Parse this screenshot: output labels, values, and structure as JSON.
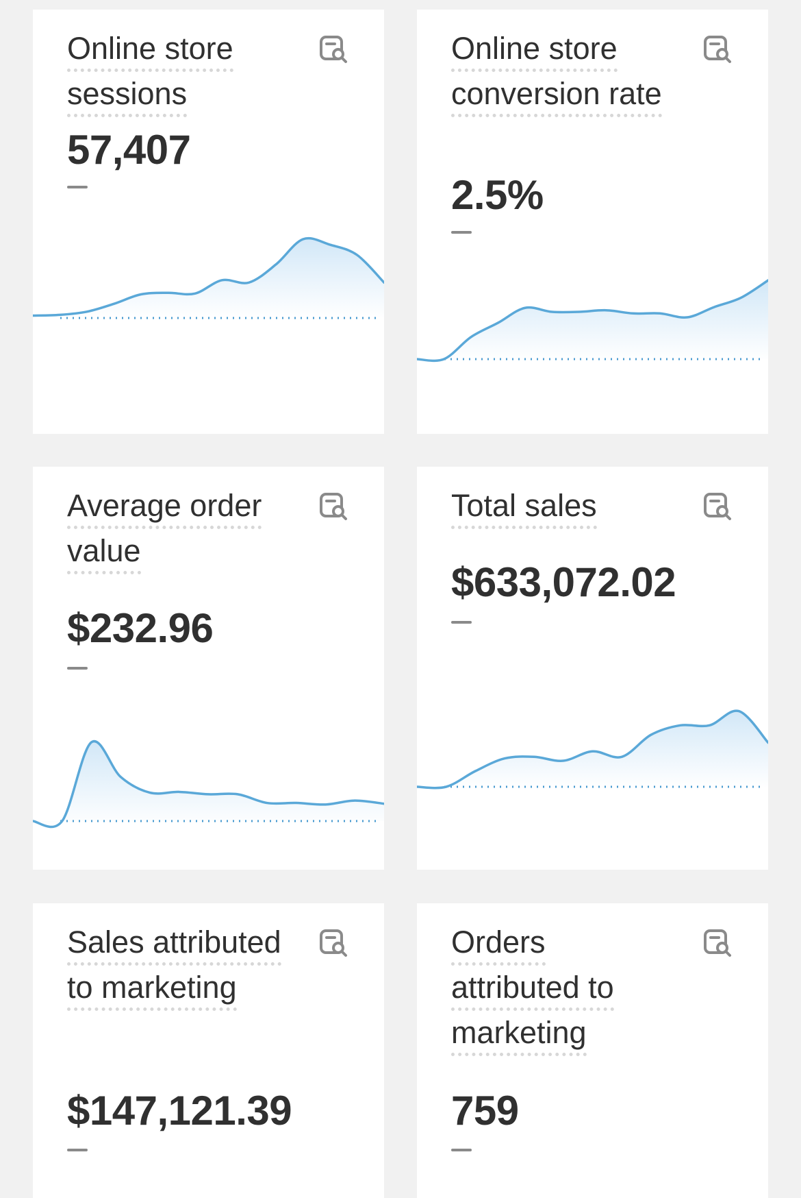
{
  "metrics": [
    {
      "title": "Online store sessions",
      "value": "57,407",
      "change": "—",
      "icon": "report-search-icon",
      "sparkline": [
        0.03,
        0.04,
        0.08,
        0.18,
        0.3,
        0.32,
        0.31,
        0.48,
        0.45,
        0.68,
        1.0,
        0.93,
        0.8,
        0.45
      ]
    },
    {
      "title": "Online store conversion rate",
      "value": "2.5%",
      "change": "—",
      "icon": "report-search-icon",
      "sparkline": [
        0.0,
        0.0,
        0.28,
        0.46,
        0.65,
        0.6,
        0.6,
        0.62,
        0.58,
        0.58,
        0.53,
        0.66,
        0.78,
        1.0
      ]
    },
    {
      "title": "Average order value",
      "value": "$232.96",
      "change": "—",
      "icon": "report-search-icon",
      "sparkline": [
        0.0,
        0.0,
        1.0,
        0.56,
        0.36,
        0.37,
        0.34,
        0.34,
        0.23,
        0.23,
        0.21,
        0.26,
        0.22
      ]
    },
    {
      "title": "Total sales",
      "value": "$633,072.02",
      "change": "—",
      "icon": "report-search-icon",
      "sparkline": [
        0.0,
        0.0,
        0.2,
        0.36,
        0.38,
        0.33,
        0.45,
        0.38,
        0.66,
        0.78,
        0.78,
        0.96,
        0.56
      ]
    },
    {
      "title": "Sales attributed to marketing",
      "value": "$147,121.39",
      "change": "—",
      "icon": "report-search-icon"
    },
    {
      "title": "Orders attributed to marketing",
      "value": "759",
      "change": "—",
      "icon": "report-search-icon"
    }
  ],
  "colors": {
    "line": "#5aa8d8",
    "fill_top": "#cfe6f7",
    "baseline": "#4a9bd0"
  }
}
